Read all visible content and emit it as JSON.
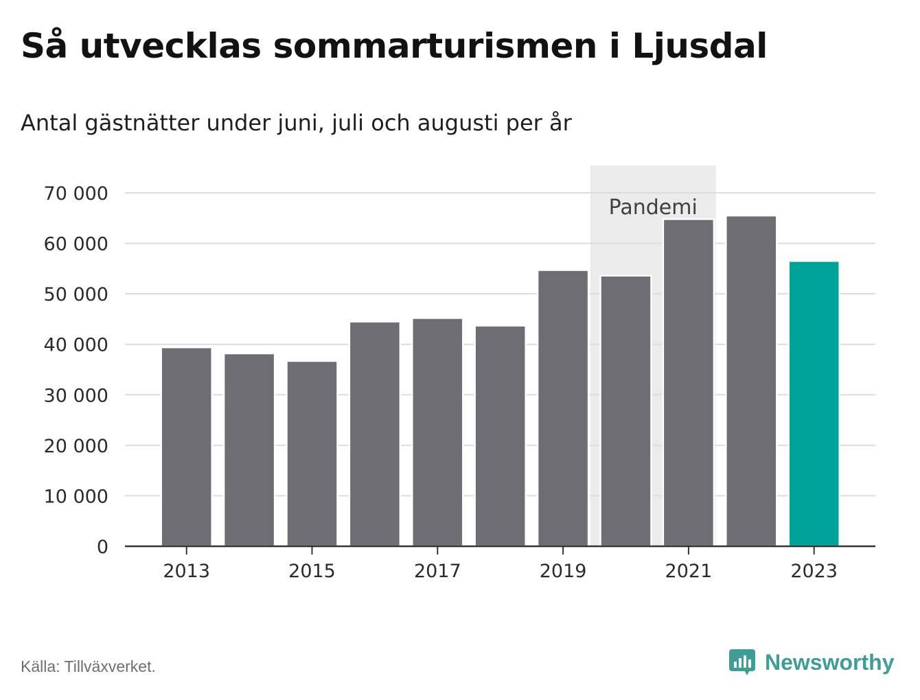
{
  "title": "Så utvecklas sommarturismen i Ljusdal",
  "subtitle": "Antal gästnätter under juni, juli och augusti per år",
  "source": "Källa: Tillväxverket.",
  "brand": {
    "name": "Newsworthy",
    "icon": "newsworthy-logo-icon",
    "color": "#3d9e95"
  },
  "chart_data": {
    "type": "bar",
    "title": "Så utvecklas sommarturismen i Ljusdal",
    "subtitle": "Antal gästnätter under juni, juli och augusti per år",
    "categories": [
      "2013",
      "2014",
      "2015",
      "2016",
      "2017",
      "2018",
      "2019",
      "2020",
      "2021",
      "2022",
      "2023"
    ],
    "values": [
      39400,
      38200,
      36700,
      44500,
      45200,
      43700,
      54700,
      53600,
      64800,
      65500,
      56500
    ],
    "x_tick_labels": [
      "2013",
      "2015",
      "2017",
      "2019",
      "2021",
      "2023"
    ],
    "y_ticks": [
      0,
      10000,
      20000,
      30000,
      40000,
      50000,
      60000,
      70000
    ],
    "y_tick_labels": [
      "0",
      "10 000",
      "20 000",
      "30 000",
      "40 000",
      "50 000",
      "60 000",
      "70 000"
    ],
    "ylim": [
      0,
      70000
    ],
    "xlabel": "",
    "ylabel": "",
    "grid": true,
    "bar_color": "#6e6d73",
    "highlight": {
      "category": "2023",
      "color": "#00a39a"
    },
    "annotation": {
      "label": "Pandemi",
      "from": "2020",
      "to": "2021",
      "color": "#ebebeb"
    }
  }
}
